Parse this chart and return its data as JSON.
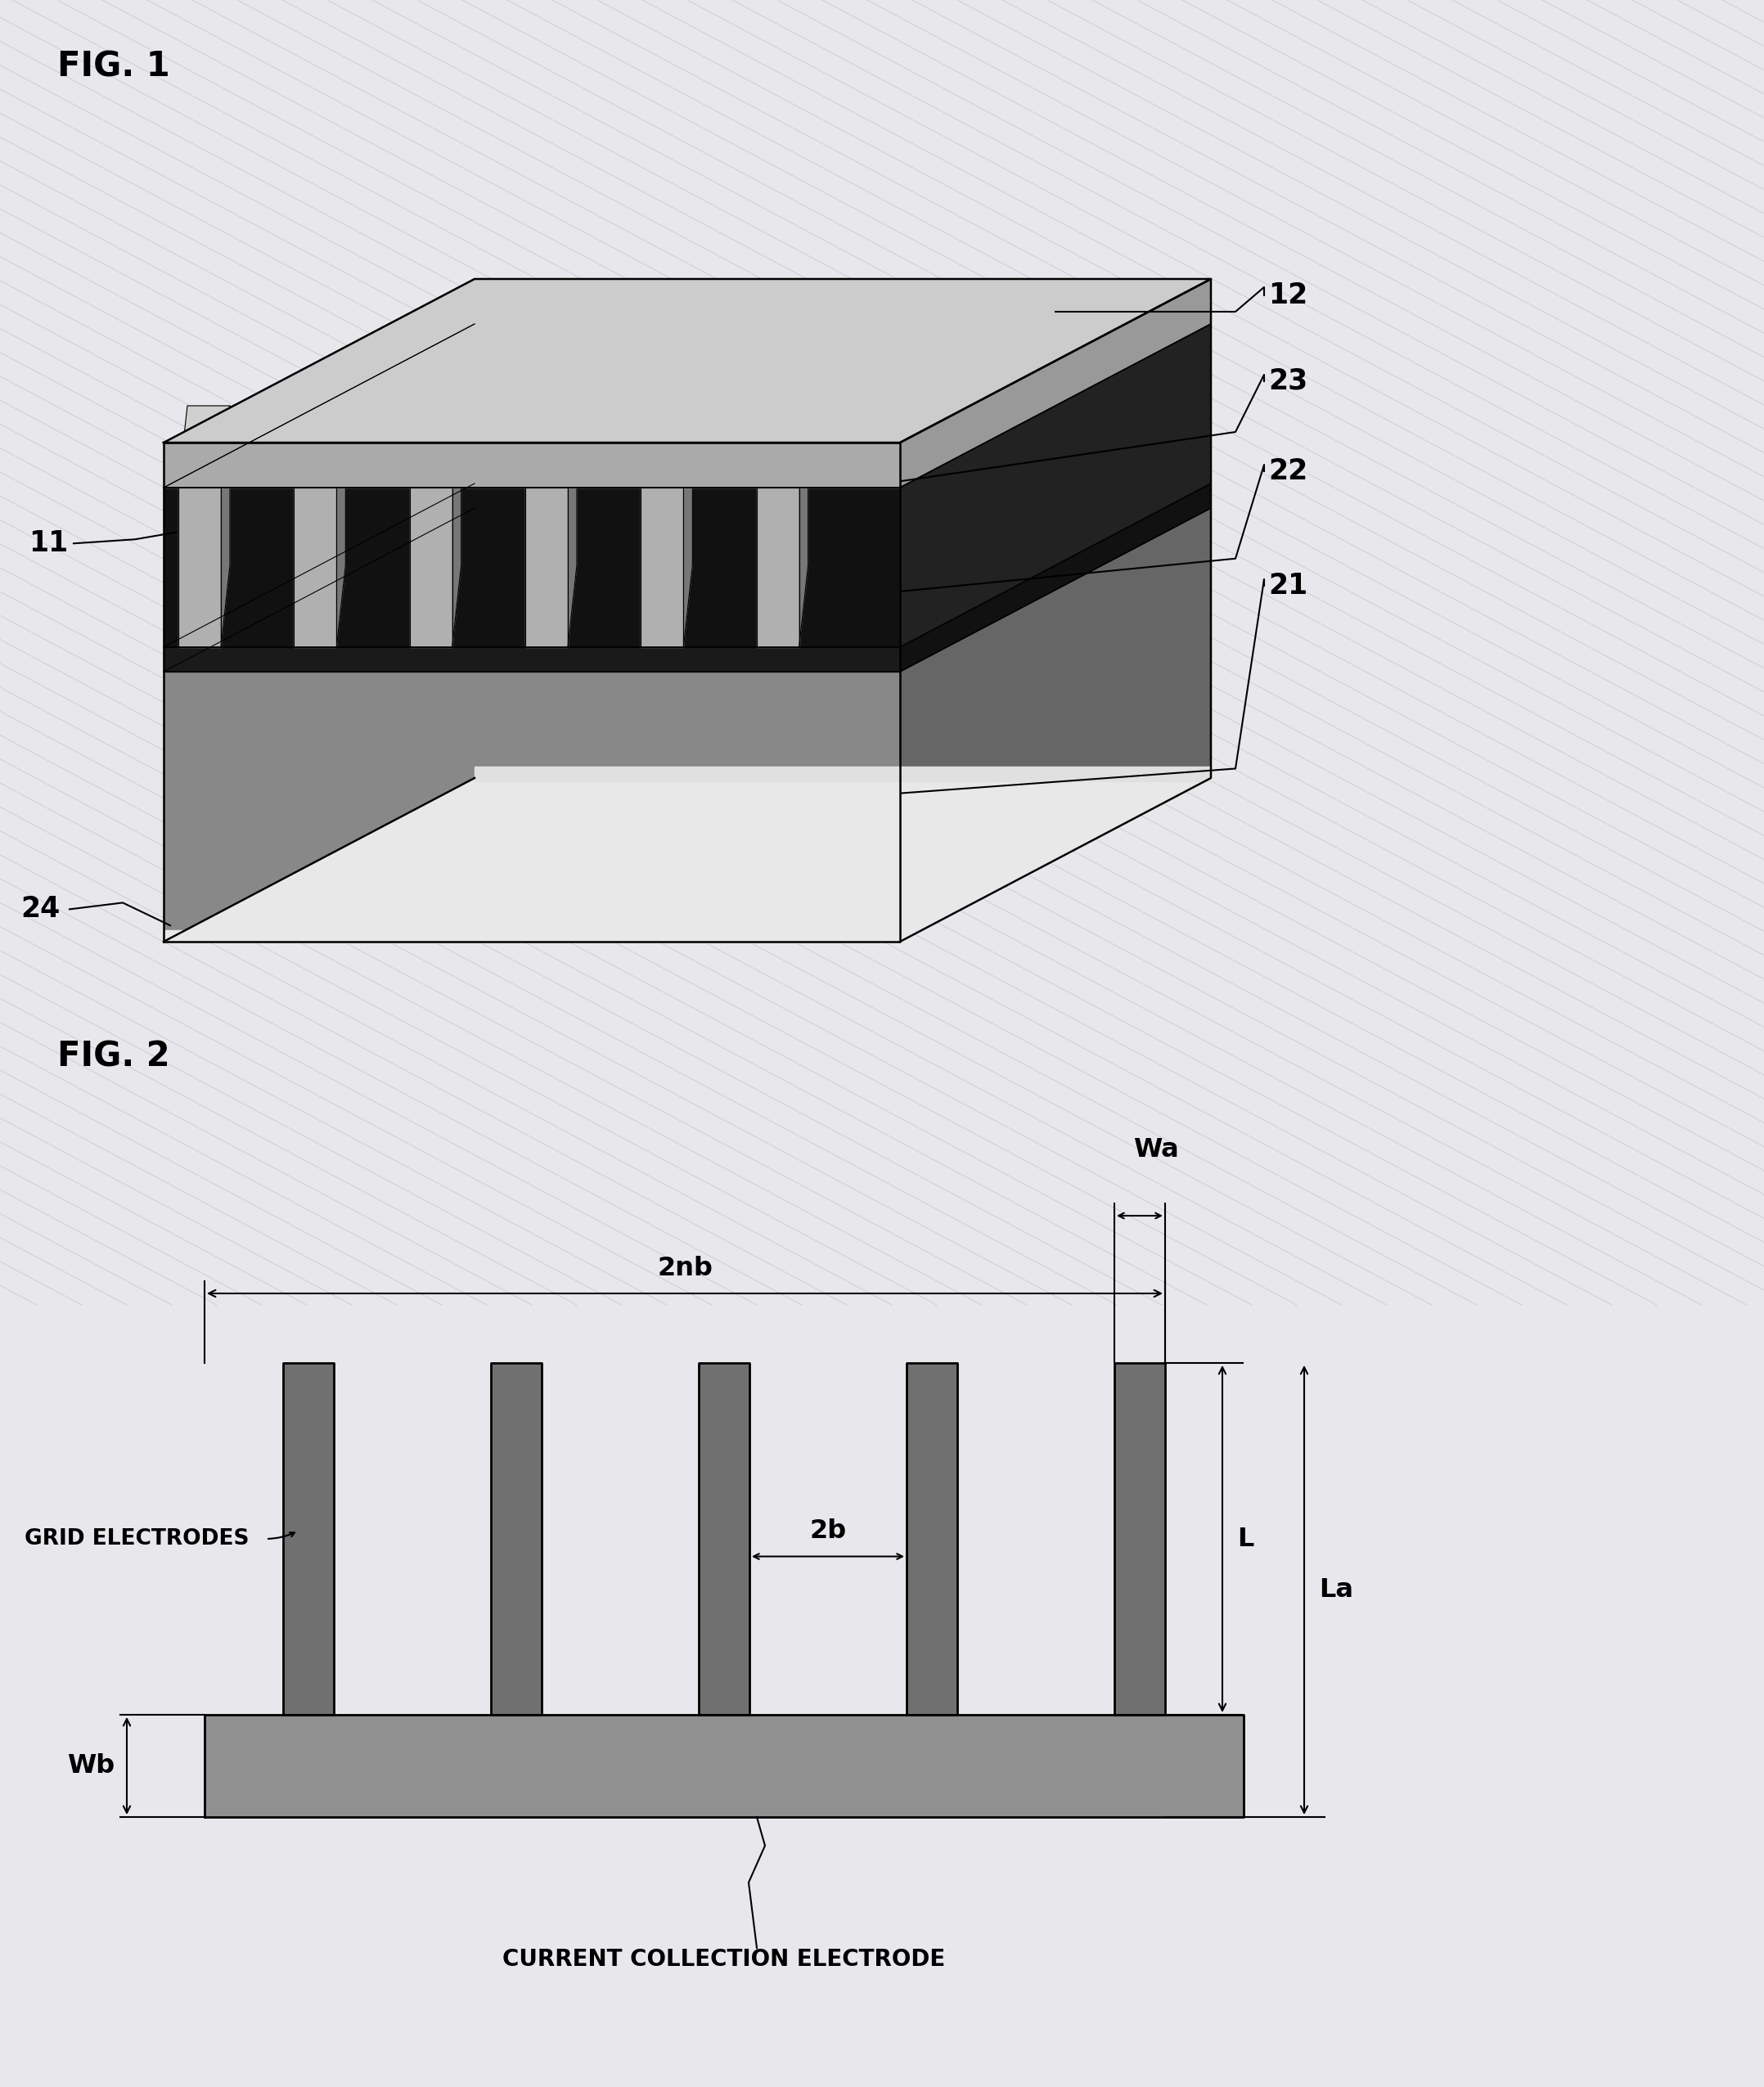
{
  "fig_label_1": "FIG. 1",
  "fig_label_2": "FIG. 2",
  "bg_color": "#e8e8ec",
  "diag_line_color": "#c0c0cc",
  "black": "#000000",
  "white": "#ffffff",
  "sub_front_color": "#888888",
  "sub_top_color": "#aaaaaa",
  "sub_right_color": "#666666",
  "layer22_front_color": "#1a1a1a",
  "layer22_top_color": "#2a2a2a",
  "layer22_right_color": "#111111",
  "grid_bg_color": "#111111",
  "grid_bar_front_color": "#b0b0b0",
  "grid_bar_top_color": "#d0d0d0",
  "grid_bar_right_color": "#777777",
  "layer12_top_color": "#cccccc",
  "layer12_front_color": "#aaaaaa",
  "layer12_right_color": "#999999",
  "base_electrode_color": "#909090",
  "grid2_color": "#707070",
  "num_grid_electrodes_3d": 6,
  "num_grid_electrodes_2d": 5,
  "fig1_labels": [
    "12",
    "23",
    "22",
    "21",
    "11",
    "24"
  ],
  "fig2_labels": [
    "Wa",
    "2nb",
    "2b",
    "L",
    "La",
    "Wb"
  ],
  "fig2_text_labels": [
    "GRID ELECTRODES",
    "CURRENT COLLECTION ELECTRODE"
  ]
}
